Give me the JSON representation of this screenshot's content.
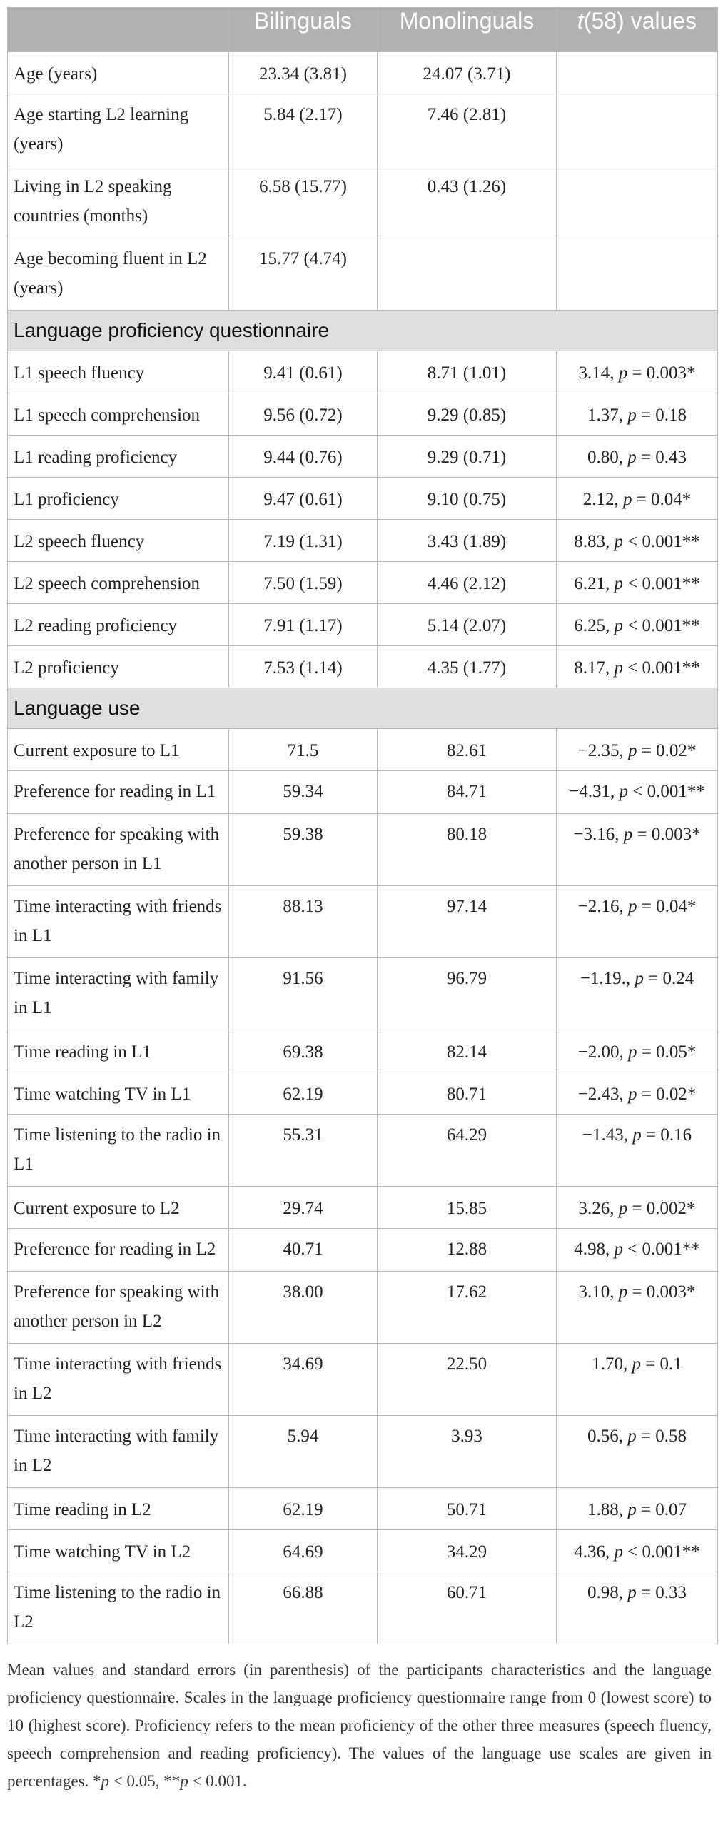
{
  "table": {
    "headers": {
      "col0": "",
      "bilinguals": "Bilinguals",
      "monolinguals": "Monolinguals",
      "t_prefix": "t",
      "t_suffix": "(58) values"
    },
    "rows_top": [
      {
        "label": "Age (years)",
        "bilinguals": "23.34 (3.81)",
        "monolinguals": "24.07 (3.71)",
        "t": ""
      },
      {
        "label": "Age starting L2 learning (years)",
        "bilinguals": "5.84 (2.17)",
        "monolinguals": "7.46 (2.81)",
        "t": ""
      },
      {
        "label": "Living in L2 speaking countries (months)",
        "bilinguals": "6.58 (15.77)",
        "monolinguals": "0.43 (1.26)",
        "t": ""
      },
      {
        "label": "Age becoming fluent in L2 (years)",
        "bilinguals": "15.77 (4.74)",
        "monolinguals": "",
        "t": ""
      }
    ],
    "section_proficiency": "Language proficiency questionnaire",
    "rows_proficiency": [
      {
        "label": "L1 speech fluency",
        "bilinguals": "9.41 (0.61)",
        "monolinguals": "8.71 (1.01)",
        "t_value": "3.14",
        "p_op": "= 0.003*"
      },
      {
        "label": "L1 speech comprehension",
        "bilinguals": "9.56 (0.72)",
        "monolinguals": "9.29 (0.85)",
        "t_value": "1.37",
        "p_op": "= 0.18"
      },
      {
        "label": "L1 reading proficiency",
        "bilinguals": "9.44 (0.76)",
        "monolinguals": "9.29 (0.71)",
        "t_value": "0.80",
        "p_op": "= 0.43"
      },
      {
        "label": "L1 proficiency",
        "bilinguals": "9.47 (0.61)",
        "monolinguals": "9.10 (0.75)",
        "t_value": "2.12",
        "p_op": "= 0.04*"
      },
      {
        "label": "L2 speech fluency",
        "bilinguals": "7.19 (1.31)",
        "monolinguals": "3.43 (1.89)",
        "t_value": "8.83",
        "p_op": "< 0.001**"
      },
      {
        "label": "L2 speech comprehension",
        "bilinguals": "7.50 (1.59)",
        "monolinguals": "4.46 (2.12)",
        "t_value": "6.21",
        "p_op": "< 0.001**"
      },
      {
        "label": "L2 reading proficiency",
        "bilinguals": "7.91 (1.17)",
        "monolinguals": "5.14 (2.07)",
        "t_value": "6.25",
        "p_op": "< 0.001**"
      },
      {
        "label": "L2 proficiency",
        "bilinguals": "7.53 (1.14)",
        "monolinguals": "4.35 (1.77)",
        "t_value": "8.17",
        "p_op": "< 0.001**"
      }
    ],
    "section_use": "Language use",
    "rows_use": [
      {
        "label": "Current exposure to L1",
        "bilinguals": "71.5",
        "monolinguals": "82.61",
        "t_value": "−2.35",
        "p_op": "= 0.02*"
      },
      {
        "label": "Preference for reading in L1",
        "bilinguals": "59.34",
        "monolinguals": "84.71",
        "t_value": "−4.31",
        "p_op": "< 0.001**"
      },
      {
        "label": "Preference for speaking with another person in L1",
        "bilinguals": "59.38",
        "monolinguals": "80.18",
        "t_value": "−3.16",
        "p_op": "= 0.003*"
      },
      {
        "label": "Time interacting with friends in L1",
        "bilinguals": "88.13",
        "monolinguals": "97.14",
        "t_value": "−2.16",
        "p_op": "= 0.04*"
      },
      {
        "label": "Time interacting with family in L1",
        "bilinguals": "91.56",
        "monolinguals": "96.79",
        "t_value": "−1.19.",
        "p_op": "= 0.24"
      },
      {
        "label": "Time reading in L1",
        "bilinguals": "69.38",
        "monolinguals": "82.14",
        "t_value": "−2.00",
        "p_op": "= 0.05*"
      },
      {
        "label": "Time watching TV in L1",
        "bilinguals": "62.19",
        "monolinguals": "80.71",
        "t_value": "−2.43",
        "p_op": "= 0.02*"
      },
      {
        "label": "Time listening to the radio in L1",
        "bilinguals": "55.31",
        "monolinguals": "64.29",
        "t_value": "−1.43",
        "p_op": "= 0.16"
      },
      {
        "label": "Current exposure to L2",
        "bilinguals": "29.74",
        "monolinguals": "15.85",
        "t_value": "3.26",
        "p_op": "= 0.002*"
      },
      {
        "label": "Preference for reading in L2",
        "bilinguals": "40.71",
        "monolinguals": "12.88",
        "t_value": "4.98",
        "p_op": "< 0.001**"
      },
      {
        "label": "Preference for speaking with another person in L2",
        "bilinguals": "38.00",
        "monolinguals": "17.62",
        "t_value": "3.10",
        "p_op": "= 0.003*"
      },
      {
        "label": "Time interacting with friends in L2",
        "bilinguals": "34.69",
        "monolinguals": "22.50",
        "t_value": "1.70",
        "p_op": "= 0.1"
      },
      {
        "label": "Time interacting with family in L2",
        "bilinguals": "5.94",
        "monolinguals": "3.93",
        "t_value": "0.56",
        "p_op": "= 0.58"
      },
      {
        "label": "Time reading in L2",
        "bilinguals": "62.19",
        "monolinguals": "50.71",
        "t_value": "1.88",
        "p_op": "= 0.07"
      },
      {
        "label": "Time watching TV in L2",
        "bilinguals": "64.69",
        "monolinguals": "34.29",
        "t_value": "4.36",
        "p_op": "< 0.001**"
      },
      {
        "label": "Time listening to the radio in L2",
        "bilinguals": "66.88",
        "monolinguals": "60.71",
        "t_value": "0.98",
        "p_op": "= 0.33"
      }
    ]
  },
  "footnote": {
    "text": "Mean values and standard errors (in parenthesis) of the participants characteristics and the language proficiency questionnaire. Scales in the language proficiency questionnaire range from 0 (lowest score) to 10 (highest score). Proficiency refers to the mean proficiency of the other three measures (speech fluency, speech comprehension and reading proficiency). The values of the language use scales are given in percentages.",
    "sig1_p": "p",
    "sig1_rest": "< 0.05,",
    "sig2_p": "p",
    "sig2_rest": "< 0.001."
  }
}
